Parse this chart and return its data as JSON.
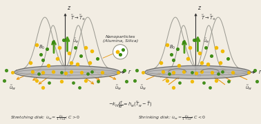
{
  "bg_color": "#f2ede3",
  "left_label": "Stretching disk: $\\tilde{u}_w = \\frac{Cr}{1-t\\lambda}$; $C > 0$",
  "right_label": "Shrinking disk: $\\tilde{u}_w = \\frac{Cr}{1-t\\lambda}$; $C < 0$",
  "center_label": "$-k_{hf}\\frac{\\partial\\tilde{T}}{\\partial z} = h_w(\\tilde{T}_w - \\tilde{T})$",
  "temp_label": "$\\tilde{T} \\rightarrow \\tilde{T}_{\\infty}$",
  "ue_label": "$\\tilde{u}_e$",
  "B0_label": "$B_0$",
  "uw_label": "$\\tilde{u}_w$",
  "nano_label": "Nanoparticles\n(Alumina, Silica)",
  "green_arrow_color": "#4a9a18",
  "yellow_dot_color": "#f0b800",
  "green_dot_color": "#3a8a10",
  "orange_arrow_color": "#e8950a",
  "disk_facecolor": "#b8b8b8",
  "disk_edgecolor": "#606060",
  "curve_color": "#888880",
  "axis_color": "#303030",
  "text_color": "#303030",
  "font_size": 5.5,
  "small_font": 4.8
}
